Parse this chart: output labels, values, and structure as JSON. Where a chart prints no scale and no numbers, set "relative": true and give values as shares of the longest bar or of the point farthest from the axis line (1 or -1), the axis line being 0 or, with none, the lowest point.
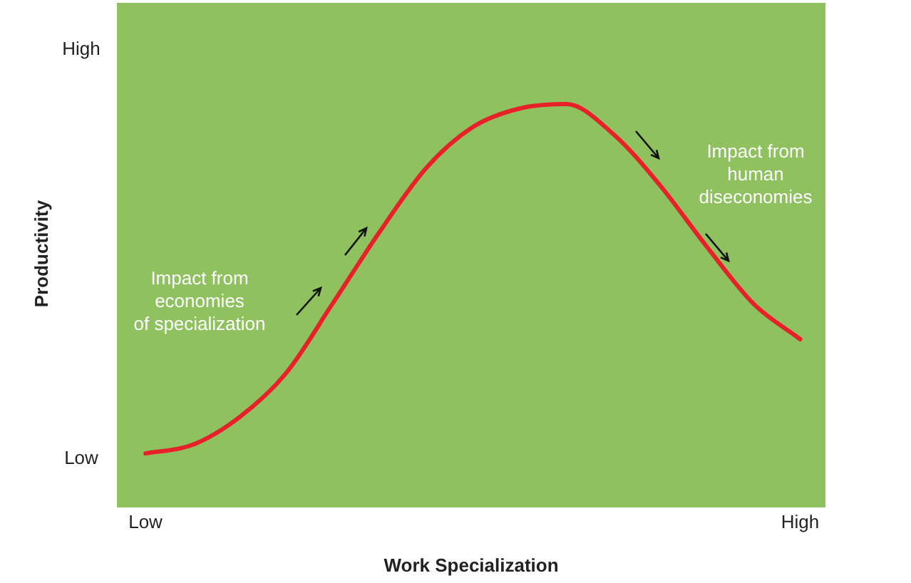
{
  "chart_data": {
    "type": "line",
    "xlabel": "Work Specialization",
    "relative": true,
    "categories": [
      "Low",
      null,
      null,
      null,
      null,
      null,
      null,
      null,
      null,
      null,
      null,
      null,
      null,
      null,
      "High"
    ],
    "grid": false,
    "legend": false,
    "marker": "none",
    "line_style": "solid",
    "series": [
      {
        "color": "#e8202a",
        "values": [
          0.134,
          0.155,
          0.223,
          0.332,
          0.505,
          0.682,
          0.841,
          0.943,
          0.989,
          1,
          0.926,
          0.799,
          0.647,
          0.505,
          0.417
        ]
      }
    ],
    "annotations": [
      "High",
      "Low",
      "Impact from\neconomies\nof specialization",
      "Impact from\nhuman\ndiseconomies",
      "Productivity"
    ]
  }
}
